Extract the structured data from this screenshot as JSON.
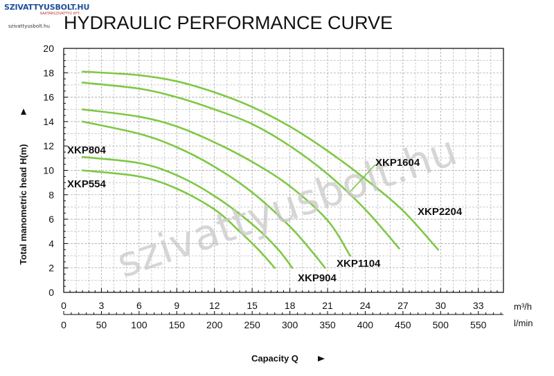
{
  "brand": {
    "logo_text": "SZIVATTYUSBOLT.HU",
    "logo_tagline": "RAKTÁRSZIVATTYÚ KFT.",
    "url_text": "szivattyusbolt.hu",
    "watermark": "szivattyusbolt.hu"
  },
  "colors": {
    "curve": "#7ec843",
    "axis": "#000000",
    "grid": "#9a9a9a",
    "title": "#111111",
    "watermark": "#c8c8c8"
  },
  "chart_data": {
    "type": "line",
    "title": "HYDRAULIC PERFORMANCE CURVE",
    "xlabel": "Capacity Q",
    "ylabel": "Total manometric head H(m)",
    "x_unit": "m³/h",
    "x2_unit": "l/min",
    "xlim": [
      0,
      35
    ],
    "ylim": [
      0,
      20
    ],
    "x_ticks": [
      "0",
      "3",
      "6",
      "9",
      "12",
      "15",
      "18",
      "21",
      "24",
      "27",
      "30",
      "33"
    ],
    "x2_ticks": [
      "0",
      "50",
      "100",
      "150",
      "200",
      "250",
      "300",
      "350",
      "400",
      "450",
      "500",
      "550"
    ],
    "y_ticks": [
      "0",
      "2",
      "4",
      "6",
      "8",
      "10",
      "12",
      "14",
      "16",
      "18",
      "20"
    ],
    "grid": true,
    "series": [
      {
        "name": "XKP554",
        "points": [
          [
            1.5,
            10.0
          ],
          [
            6,
            9.5
          ],
          [
            9,
            8.5
          ],
          [
            12,
            6.8
          ],
          [
            14,
            5.0
          ],
          [
            15.5,
            3.5
          ],
          [
            16.8,
            2.0
          ]
        ]
      },
      {
        "name": "XKP804",
        "points": [
          [
            1.5,
            11.1
          ],
          [
            6,
            10.6
          ],
          [
            9,
            9.6
          ],
          [
            12,
            7.9
          ],
          [
            15,
            5.6
          ],
          [
            17,
            3.6
          ],
          [
            18.2,
            2.0
          ]
        ]
      },
      {
        "name": "XKP904",
        "points": [
          [
            1.5,
            14.0
          ],
          [
            6,
            13.0
          ],
          [
            9,
            11.9
          ],
          [
            12,
            10.3
          ],
          [
            15,
            8.2
          ],
          [
            18,
            5.4
          ],
          [
            19.8,
            3.3
          ],
          [
            20.8,
            2.0
          ]
        ]
      },
      {
        "name": "XKP1104",
        "points": [
          [
            1.5,
            15.0
          ],
          [
            6,
            14.4
          ],
          [
            9,
            13.6
          ],
          [
            12,
            12.3
          ],
          [
            15,
            10.7
          ],
          [
            18,
            8.7
          ],
          [
            21,
            5.9
          ],
          [
            22.8,
            3.0
          ]
        ]
      },
      {
        "name": "XKP1604",
        "points": [
          [
            1.5,
            17.2
          ],
          [
            6,
            16.7
          ],
          [
            9,
            16.0
          ],
          [
            12,
            15.0
          ],
          [
            15,
            13.8
          ],
          [
            18,
            12.0
          ],
          [
            21,
            9.7
          ],
          [
            24,
            6.8
          ],
          [
            26.7,
            3.6
          ]
        ]
      },
      {
        "name": "XKP2204",
        "points": [
          [
            1.5,
            18.1
          ],
          [
            6,
            17.8
          ],
          [
            9,
            17.3
          ],
          [
            12,
            16.4
          ],
          [
            15,
            15.2
          ],
          [
            18,
            13.6
          ],
          [
            21,
            11.6
          ],
          [
            24,
            9.3
          ],
          [
            27,
            6.7
          ],
          [
            29.8,
            3.5
          ]
        ]
      }
    ],
    "labels": {
      "xkp804": "XKP804",
      "xkp554": "XKP554",
      "xkp1604": "XKP1604",
      "xkp2204": "XKP2204",
      "xkp1104": "XKP1104",
      "xkp904": "XKP904"
    }
  }
}
